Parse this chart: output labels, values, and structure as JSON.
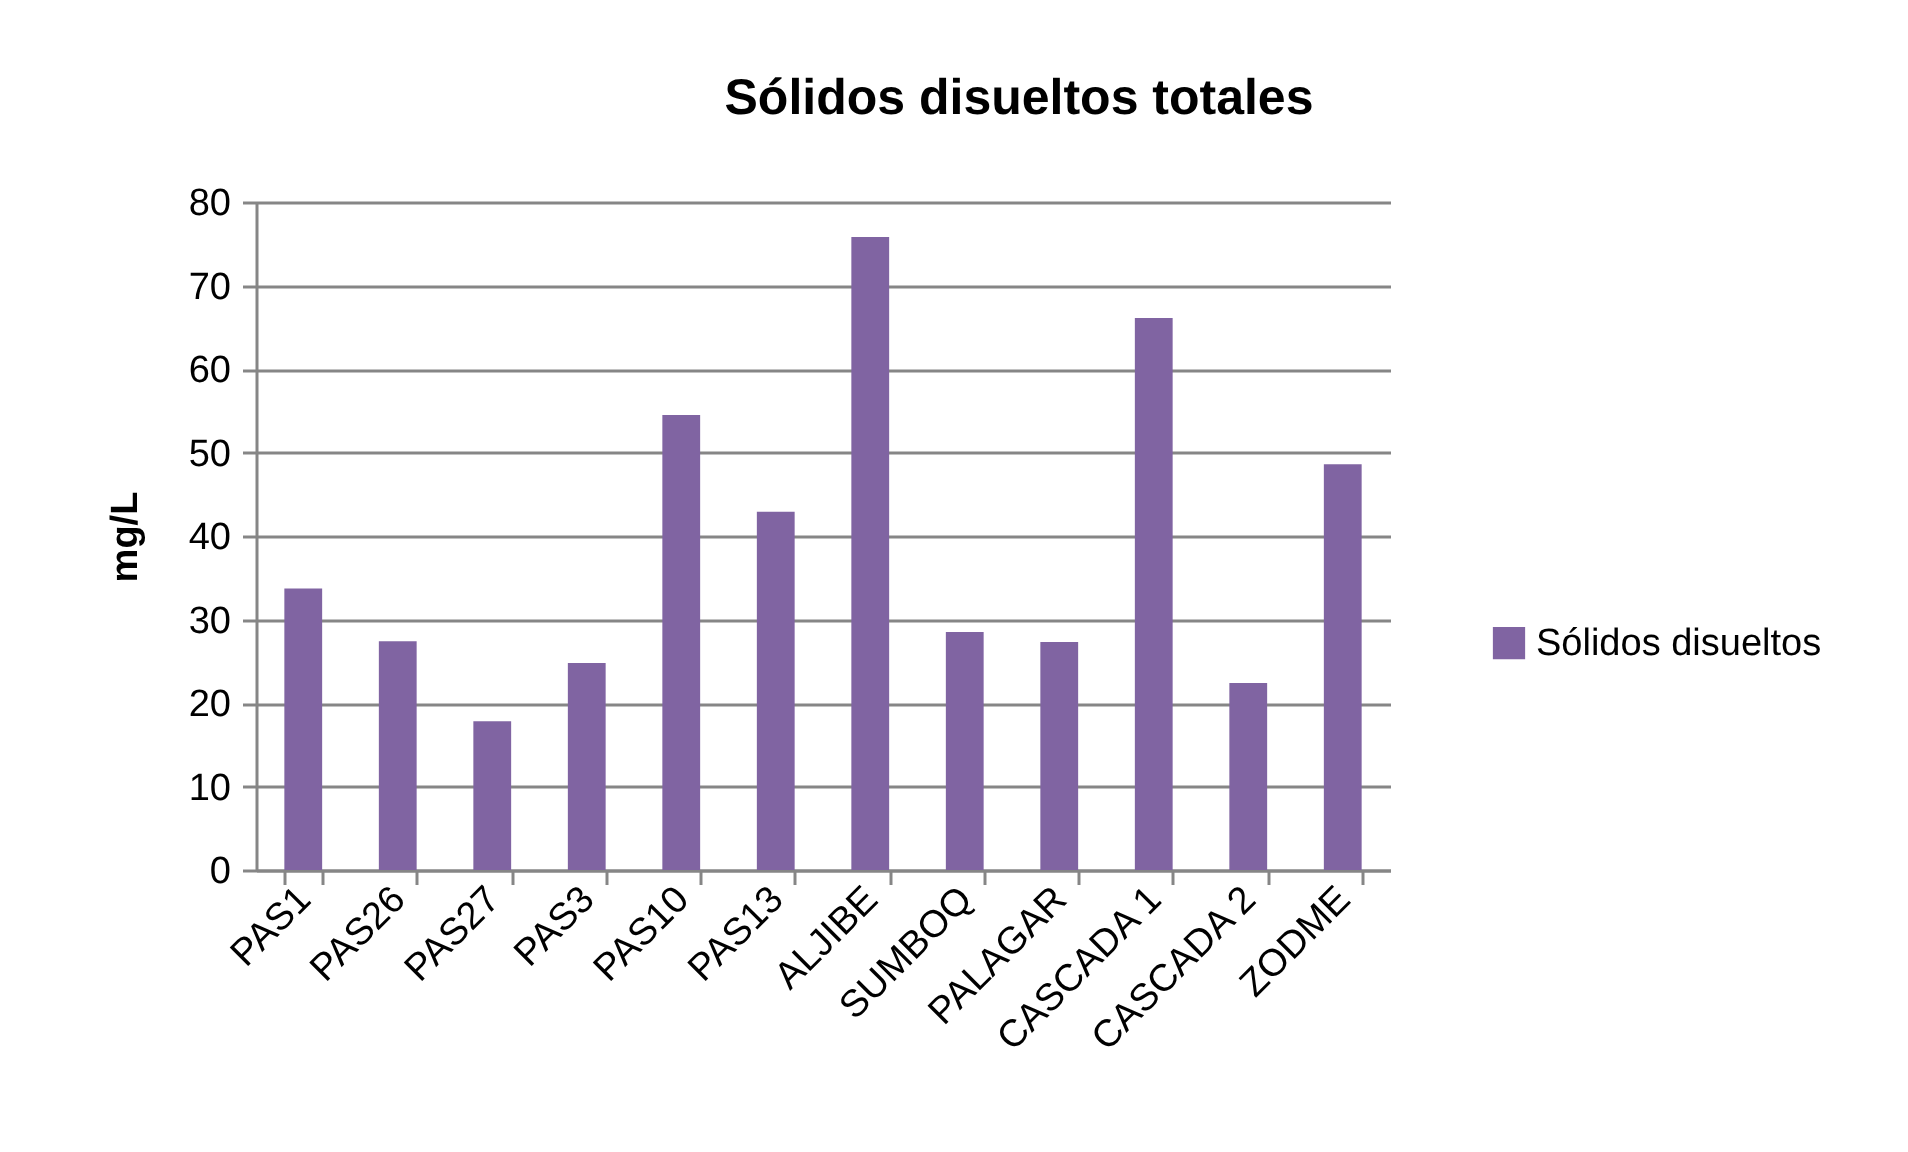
{
  "chart_data": {
    "type": "bar",
    "title": "Sólidos disueltos totales",
    "ylabel": "mg/L",
    "categories": [
      "PAS1",
      "PAS26",
      "PAS27",
      "PAS3",
      "PAS10",
      "PAS13",
      "ALJIBE",
      "SUMBOQ",
      "PALAGAR",
      "CASCADA 1",
      "CASCADA 2",
      "ZODME"
    ],
    "series": [
      {
        "name": "Sólidos disueltos",
        "color": "#8064a2",
        "values": [
          33.7,
          27.4,
          17.8,
          24.8,
          54.5,
          42.9,
          75.8,
          28.5,
          27.3,
          66.1,
          22.4,
          48.6
        ]
      }
    ],
    "ylim": [
      0,
      80
    ],
    "yticks": [
      0,
      10,
      20,
      30,
      40,
      50,
      60,
      70,
      80
    ],
    "grid": "y",
    "legend": "right"
  }
}
